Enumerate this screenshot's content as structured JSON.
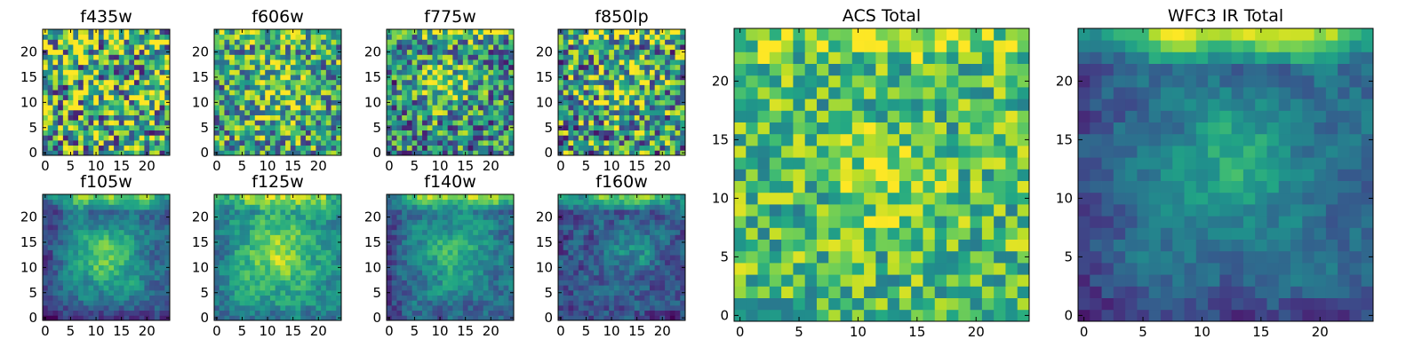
{
  "chart_data": [
    {
      "type": "heatmap",
      "title": "f435w",
      "xticks": [
        0,
        5,
        10,
        15,
        20
      ],
      "yticks": [
        0,
        5,
        10,
        15,
        20
      ],
      "xlim": [
        -0.5,
        24.5
      ],
      "ylim": [
        -0.5,
        24.5
      ],
      "grid_size": 25,
      "colormap": "viridis",
      "pattern": "uniform noise, no clear peak",
      "seed": 11
    },
    {
      "type": "heatmap",
      "title": "f606w",
      "xticks": [
        0,
        5,
        10,
        15,
        20
      ],
      "yticks": [
        0,
        5,
        10,
        15,
        20
      ],
      "xlim": [
        -0.5,
        24.5
      ],
      "ylim": [
        -0.5,
        24.5
      ],
      "grid_size": 25,
      "colormap": "viridis",
      "pattern": "noisy, faint central bright region",
      "seed": 23
    },
    {
      "type": "heatmap",
      "title": "f775w",
      "xticks": [
        0,
        5,
        10,
        15,
        20
      ],
      "yticks": [
        0,
        5,
        10,
        15,
        20
      ],
      "xlim": [
        -0.5,
        24.5
      ],
      "ylim": [
        -0.5,
        24.5
      ],
      "grid_size": 25,
      "colormap": "viridis",
      "pattern": "noisy, central peak near (11,14), bright top edge",
      "seed": 37
    },
    {
      "type": "heatmap",
      "title": "f850lp",
      "xticks": [
        0,
        5,
        10,
        15,
        20
      ],
      "yticks": [
        0,
        5,
        10,
        15,
        20
      ],
      "xlim": [
        -0.5,
        24.5
      ],
      "ylim": [
        -0.5,
        24.5
      ],
      "grid_size": 25,
      "colormap": "viridis",
      "pattern": "noisy, central peak near (13,13), bright top edge",
      "seed": 41
    },
    {
      "type": "heatmap",
      "title": "f105w",
      "xticks": [
        0,
        5,
        10,
        15,
        20
      ],
      "yticks": [
        0,
        5,
        10,
        15,
        20
      ],
      "xlim": [
        -0.5,
        24.5
      ],
      "ylim": [
        -0.5,
        24.5
      ],
      "grid_size": 25,
      "colormap": "viridis",
      "pattern": "smooth, central peak near (12,12), bright top edge, dark left and bottom",
      "seed": 53
    },
    {
      "type": "heatmap",
      "title": "f125w",
      "xticks": [
        0,
        5,
        10,
        15,
        20
      ],
      "yticks": [
        0,
        5,
        10,
        15,
        20
      ],
      "xlim": [
        -0.5,
        24.5
      ],
      "ylim": [
        -0.5,
        24.5
      ],
      "grid_size": 25,
      "colormap": "viridis",
      "pattern": "smooth, central peak near (12,13), bright top edge",
      "seed": 67
    },
    {
      "type": "heatmap",
      "title": "f140w",
      "xticks": [
        0,
        5,
        10,
        15,
        20
      ],
      "yticks": [
        0,
        5,
        10,
        15,
        20
      ],
      "xlim": [
        -0.5,
        24.5
      ],
      "ylim": [
        -0.5,
        24.5
      ],
      "grid_size": 25,
      "colormap": "viridis",
      "pattern": "smooth, central peak near (13,13), bright top edge, dark left",
      "seed": 71
    },
    {
      "type": "heatmap",
      "title": "f160w",
      "xticks": [
        0,
        5,
        10,
        15,
        20
      ],
      "yticks": [
        0,
        5,
        10,
        15,
        20
      ],
      "xlim": [
        -0.5,
        24.5
      ],
      "ylim": [
        -0.5,
        24.5
      ],
      "grid_size": 25,
      "colormap": "viridis",
      "pattern": "mostly dark, weak peak near (14,13), bright top edge",
      "seed": 83
    },
    {
      "type": "heatmap",
      "title": "ACS Total",
      "xticks": [
        0,
        5,
        10,
        15,
        20
      ],
      "yticks": [
        0,
        5,
        10,
        15,
        20
      ],
      "xlim": [
        -0.5,
        24.5
      ],
      "ylim": [
        -0.5,
        24.5
      ],
      "grid_size": 25,
      "colormap": "viridis",
      "pattern": "green noise, peak near (12,12), bright top edge",
      "seed": 97
    },
    {
      "type": "heatmap",
      "title": "WFC3 IR Total",
      "xticks": [
        0,
        5,
        10,
        15,
        20
      ],
      "yticks": [
        0,
        5,
        10,
        15,
        20
      ],
      "xlim": [
        -0.5,
        24.5
      ],
      "ylim": [
        -0.5,
        24.5
      ],
      "grid_size": 25,
      "colormap": "viridis",
      "pattern": "blue-teal, peak near (13,13), bright top edge, dark lower-left",
      "seed": 101
    }
  ]
}
